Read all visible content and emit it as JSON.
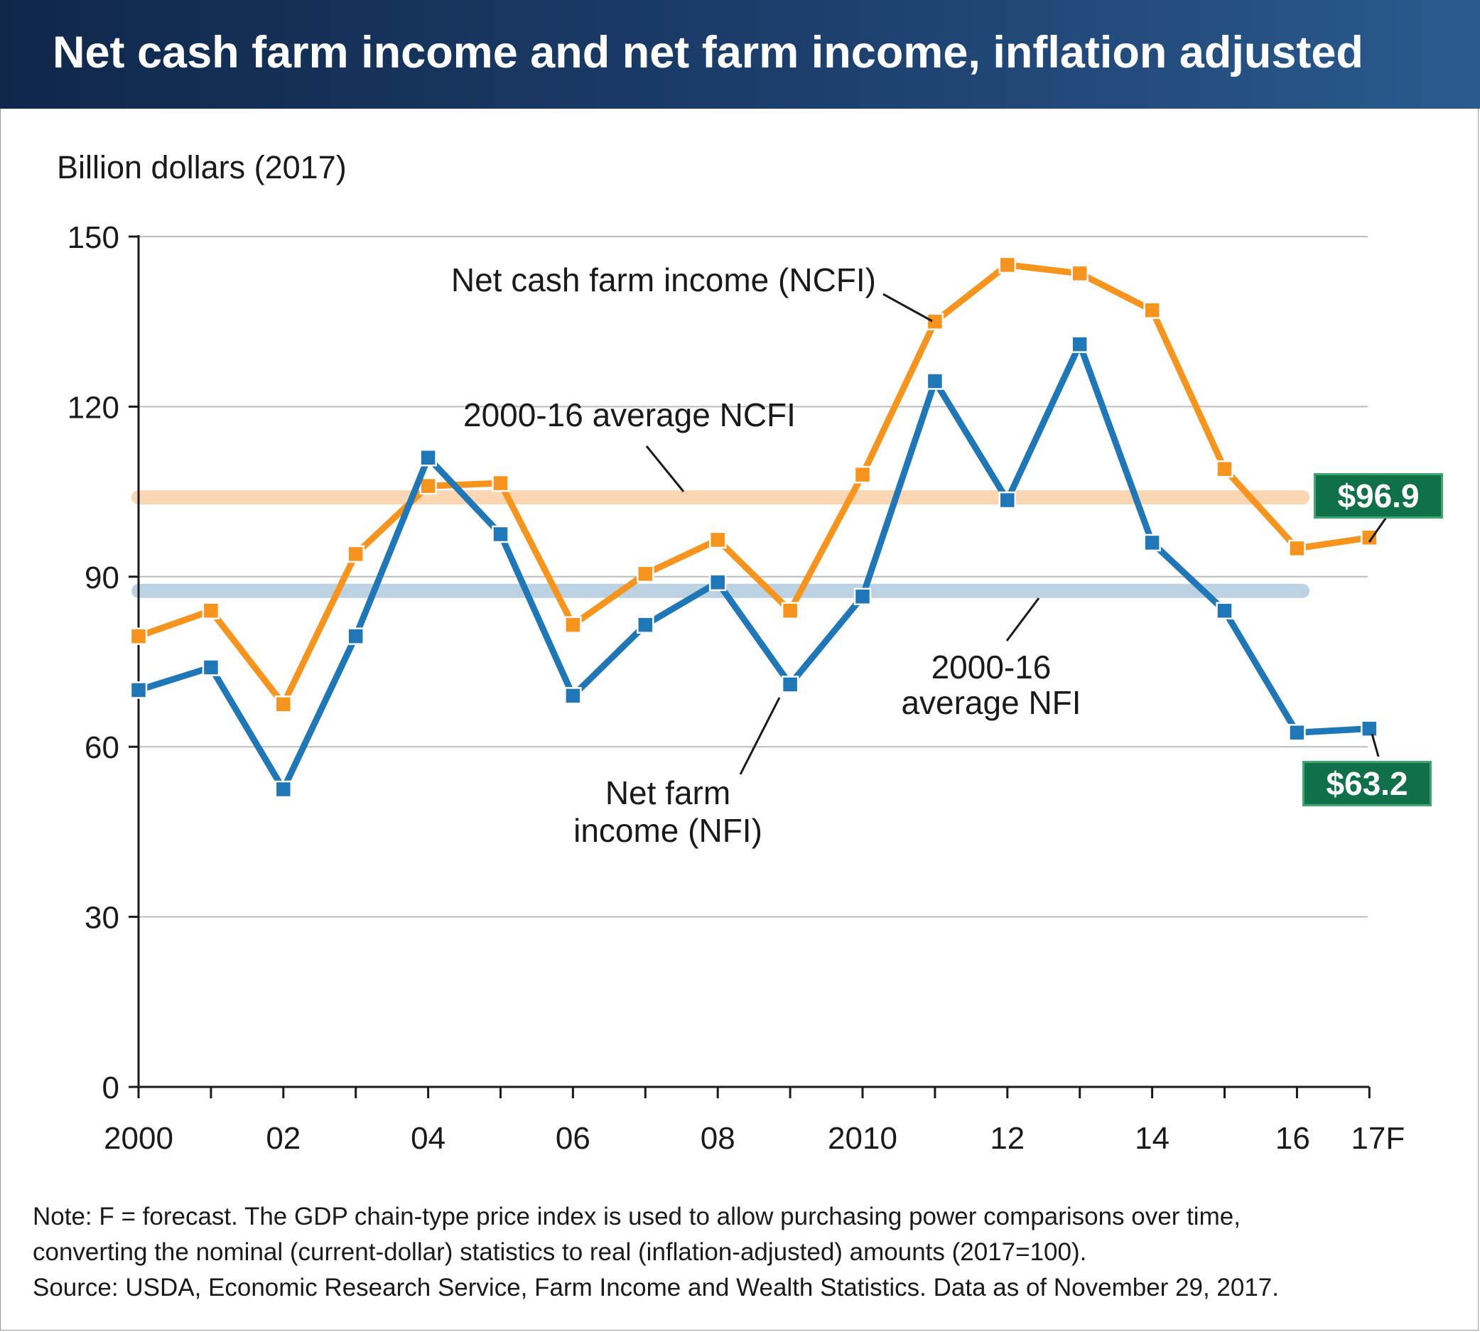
{
  "header": {
    "title": "Net cash farm income and net farm income, inflation adjusted"
  },
  "chart_data": {
    "type": "line",
    "ylabel": "Billion dollars (2017)",
    "ylim": [
      0,
      150
    ],
    "yticks": [
      0,
      30,
      60,
      90,
      120,
      150
    ],
    "x": [
      "2000",
      "2001",
      "2002",
      "2003",
      "2004",
      "2005",
      "2006",
      "2007",
      "2008",
      "2009",
      "2010",
      "2011",
      "2012",
      "2013",
      "2014",
      "2015",
      "2016",
      "2017F"
    ],
    "xtick_labels": [
      "2000",
      "",
      "02",
      "",
      "04",
      "",
      "06",
      "",
      "08",
      "",
      "2010",
      "",
      "12",
      "",
      "14",
      "",
      "16",
      "17F"
    ],
    "series": [
      {
        "name": "Net cash farm income (NCFI)",
        "color": "#f7941d",
        "values": [
          79.5,
          84.0,
          67.5,
          94.0,
          106.0,
          106.5,
          81.5,
          90.5,
          96.5,
          84.0,
          108.0,
          135.0,
          145.0,
          143.5,
          137.0,
          109.0,
          95.0,
          96.9
        ]
      },
      {
        "name": "Net farm income (NFI)",
        "color": "#1f77b8",
        "values": [
          70.0,
          74.0,
          52.5,
          79.5,
          111.0,
          97.5,
          69.0,
          81.5,
          89.0,
          71.0,
          86.5,
          124.5,
          103.5,
          131.0,
          96.0,
          84.0,
          62.5,
          63.2
        ]
      }
    ],
    "reference_lines": [
      {
        "label": "2000-16 average NCFI",
        "value": 104.0,
        "color": "#fad6b2"
      },
      {
        "label": "2000-16 average NFI",
        "value": 87.5,
        "color": "#bcd2e3"
      }
    ],
    "annotations": {
      "ncfi_label": "Net cash farm income (NCFI)",
      "nfi_label_line1": "Net farm",
      "nfi_label_line2": "income (NFI)",
      "avg_ncfi_label": "2000-16 average NCFI",
      "avg_nfi_line1": "2000-16",
      "avg_nfi_line2": "average NFI",
      "ncfi_value_label": "$96.9",
      "nfi_value_label": "$63.2"
    },
    "value_label_color": "#10704a",
    "grid": true
  },
  "notes": {
    "line1": "Note: F = forecast. The GDP chain-type price index is used to allow purchasing power comparisons over time,",
    "line2": "converting the nominal (current-dollar) statistics to real (inflation-adjusted) amounts (2017=100).",
    "line3": "Source: USDA, Economic Research Service, Farm Income and Wealth Statistics. Data as of November 29, 2017."
  }
}
